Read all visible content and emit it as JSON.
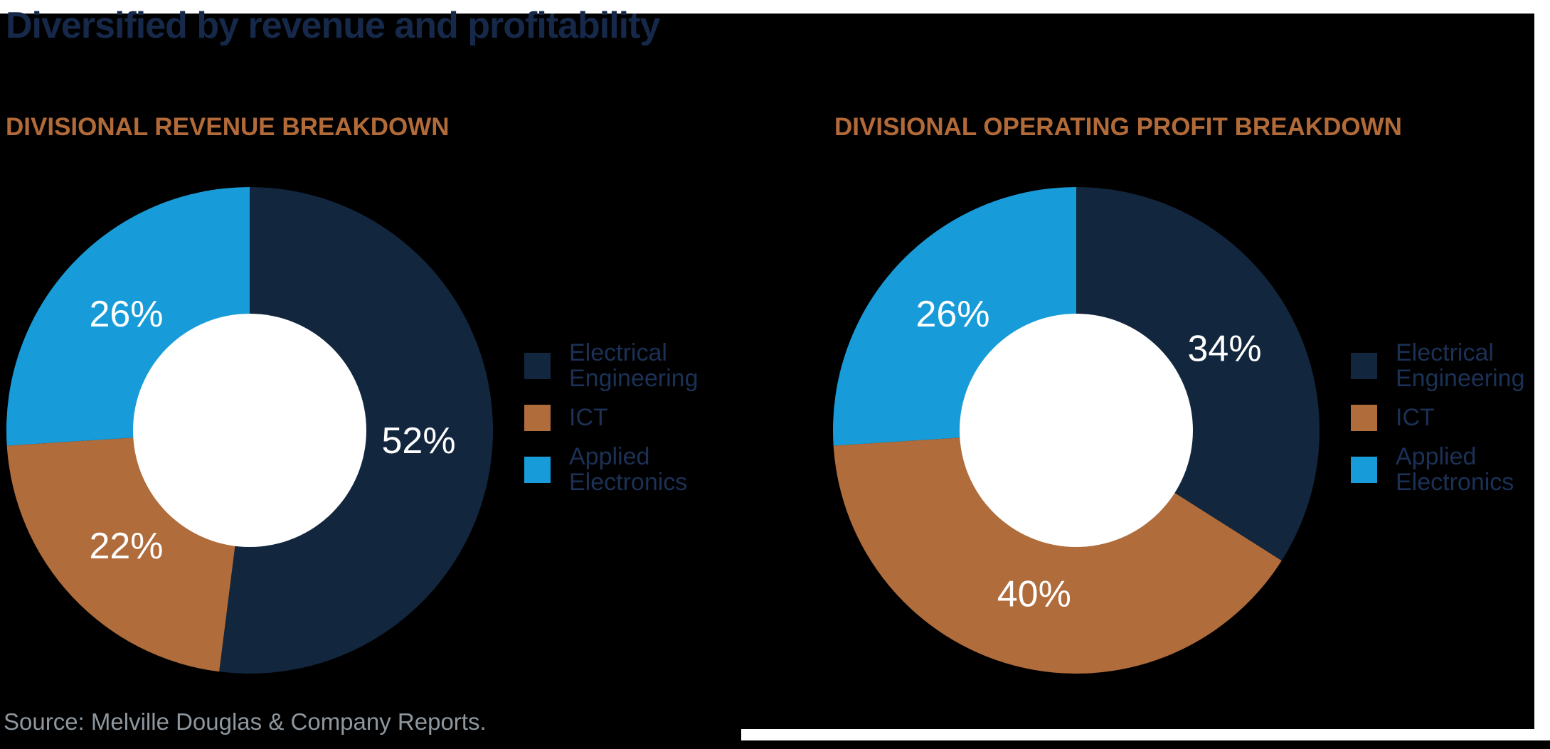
{
  "title": "Diversified by revenue and profitability",
  "source": "Source: Melville Douglas & Company Reports.",
  "colors": {
    "background": "#000000",
    "margin_strips": "#FFFFFF",
    "title_text": "#16294A",
    "section_header_text": "#B16A38",
    "legend_text": "#1B3156",
    "source_text": "#8E979E",
    "slice_navy": "#12263E",
    "slice_brown": "#B06C3B",
    "slice_blue": "#189CD9",
    "donut_hole": "#FFFFFF",
    "percent_label_text": "#FFFFFF"
  },
  "legend": {
    "items": [
      {
        "label": "Electrical Engineering",
        "label_lines": [
          "Electrical",
          "Engineering"
        ],
        "color": "#12263E"
      },
      {
        "label": "ICT",
        "label_lines": [
          "ICT"
        ],
        "color": "#B06C3B"
      },
      {
        "label": "Applied Electronics",
        "label_lines": [
          "Applied",
          "Electronics"
        ],
        "color": "#189CD9"
      }
    ]
  },
  "chart_data": [
    {
      "type": "pie",
      "subtype": "donut",
      "title": "DIVISIONAL REVENUE BREAKDOWN",
      "unit": "%",
      "start_angle_deg": 0,
      "direction": "clockwise",
      "categories": [
        "Electrical Engineering",
        "ICT",
        "Applied Electronics"
      ],
      "values": [
        52,
        22,
        26
      ],
      "slice_colors": [
        "#12263E",
        "#B06C3B",
        "#189CD9"
      ],
      "data_labels": [
        "52%",
        "22%",
        "26%"
      ],
      "legend_position": "right"
    },
    {
      "type": "pie",
      "subtype": "donut",
      "title": "DIVISIONAL OPERATING PROFIT BREAKDOWN",
      "unit": "%",
      "start_angle_deg": 0,
      "direction": "clockwise",
      "categories": [
        "Electrical Engineering",
        "ICT",
        "Applied Electronics"
      ],
      "values": [
        34,
        40,
        26
      ],
      "slice_colors": [
        "#12263E",
        "#B06C3B",
        "#189CD9"
      ],
      "data_labels": [
        "34%",
        "40%",
        "26%"
      ],
      "legend_position": "right"
    }
  ]
}
